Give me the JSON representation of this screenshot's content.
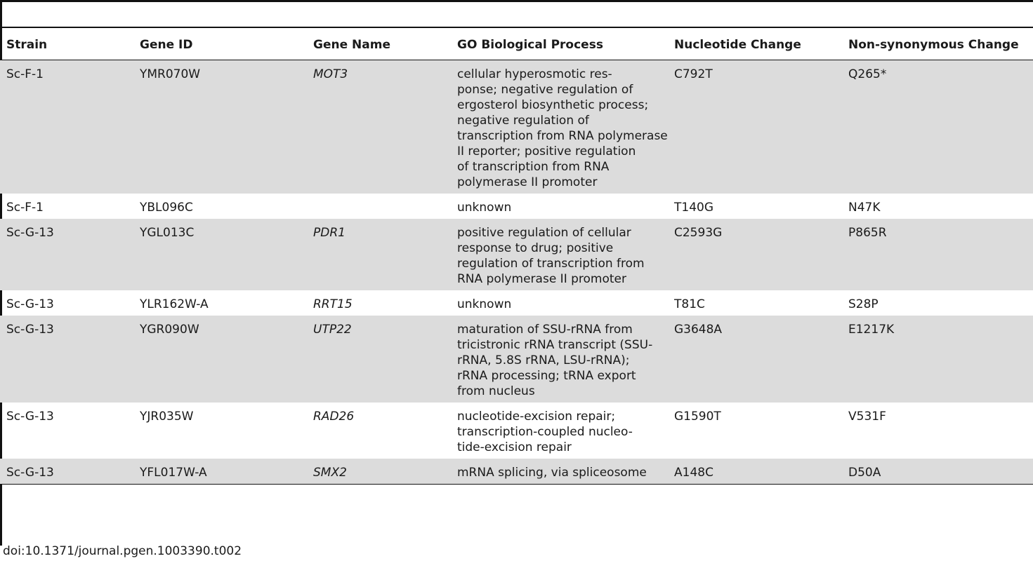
{
  "table": {
    "headers": {
      "strain": "Strain",
      "gene_id": "Gene ID",
      "gene_name": "Gene Name",
      "go_process": "GO Biological Process",
      "nucleotide_change": "Nucleotide Change",
      "nonsyn_change": "Non-synonymous Change"
    },
    "rows": [
      {
        "strain": "Sc-F-1",
        "gene_id": "YMR070W",
        "gene_name": "MOT3",
        "go_process": "cellular hyperosmotic res-\nponse; negative regulation of\nergosterol biosynthetic process;\nnegative regulation of\ntranscription from RNA polymerase\nII reporter; positive regulation\nof transcription from RNA\npolymerase II promoter",
        "nucleotide_change": "C792T",
        "nonsyn_change": "Q265*"
      },
      {
        "strain": "Sc-F-1",
        "gene_id": "YBL096C",
        "gene_name": "",
        "go_process": "unknown",
        "nucleotide_change": "T140G",
        "nonsyn_change": "N47K"
      },
      {
        "strain": "Sc-G-13",
        "gene_id": "YGL013C",
        "gene_name": "PDR1",
        "go_process": "positive regulation of cellular\nresponse to drug; positive\nregulation of transcription from\nRNA polymerase II promoter",
        "nucleotide_change": "C2593G",
        "nonsyn_change": "P865R"
      },
      {
        "strain": "Sc-G-13",
        "gene_id": "YLR162W-A",
        "gene_name": "RRT15",
        "go_process": "unknown",
        "nucleotide_change": "T81C",
        "nonsyn_change": "S28P"
      },
      {
        "strain": "Sc-G-13",
        "gene_id": "YGR090W",
        "gene_name": "UTP22",
        "go_process": "maturation of SSU-rRNA from\ntricistronic rRNA transcript (SSU-\nrRNA, 5.8S rRNA, LSU-rRNA);\nrRNA processing; tRNA export\nfrom nucleus",
        "nucleotide_change": "G3648A",
        "nonsyn_change": "E1217K"
      },
      {
        "strain": "Sc-G-13",
        "gene_id": "YJR035W",
        "gene_name": "RAD26",
        "go_process": "nucleotide-excision repair;\ntranscription-coupled nucleo-\ntide-excision repair",
        "nucleotide_change": "G1590T",
        "nonsyn_change": "V531F"
      },
      {
        "strain": "Sc-G-13",
        "gene_id": "YFL017W-A",
        "gene_name": "SMX2",
        "go_process": "mRNA splicing, via spliceosome",
        "nucleotide_change": "A148C",
        "nonsyn_change": "D50A"
      }
    ]
  },
  "footer": {
    "doi": "doi:10.1371/journal.pgen.1003390.t002"
  }
}
